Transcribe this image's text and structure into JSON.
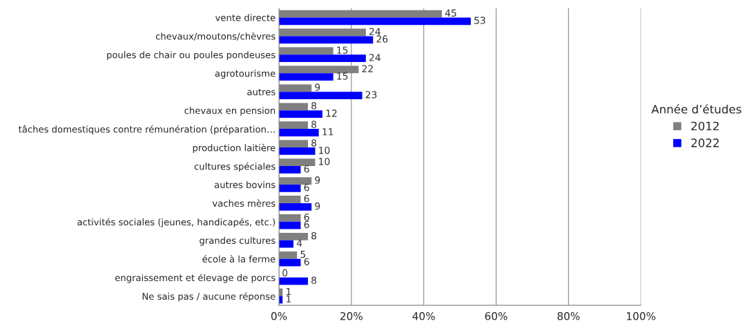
{
  "chart_data": {
    "type": "bar",
    "orientation": "horizontal",
    "categories": [
      "vente directe",
      "chevaux/moutons/chèvres",
      "poules de chair ou poules pondeuses",
      "agrotourisme",
      "autres",
      "chevaux en pension",
      "tâches domestiques contre rémunération (préparation…",
      "production laitière",
      "cultures spéciales",
      "autres bovins",
      "vaches mères",
      "activités sociales (jeunes, handicapés, etc.)",
      "grandes cultures",
      "école à la ferme",
      "engraissement et élevage de porcs",
      "Ne sais pas / aucune réponse"
    ],
    "series": [
      {
        "name": "2012",
        "color": "#808080",
        "values": [
          45,
          24,
          15,
          22,
          9,
          8,
          8,
          8,
          10,
          9,
          6,
          6,
          8,
          5,
          0,
          1
        ]
      },
      {
        "name": "2022",
        "color": "#0000ff",
        "values": [
          53,
          26,
          24,
          15,
          23,
          12,
          11,
          10,
          6,
          6,
          9,
          6,
          4,
          6,
          8,
          1
        ]
      }
    ],
    "xlim": [
      0,
      100
    ],
    "xticks": [
      {
        "value": 0,
        "label": "0%"
      },
      {
        "value": 20,
        "label": "20%"
      },
      {
        "value": 40,
        "label": "40%"
      },
      {
        "value": 60,
        "label": "60%"
      },
      {
        "value": 80,
        "label": "80%"
      },
      {
        "value": 100,
        "label": "100%"
      }
    ],
    "grid": "x",
    "data_labels": true,
    "legend": "right",
    "legend_title": "Année d’études"
  }
}
